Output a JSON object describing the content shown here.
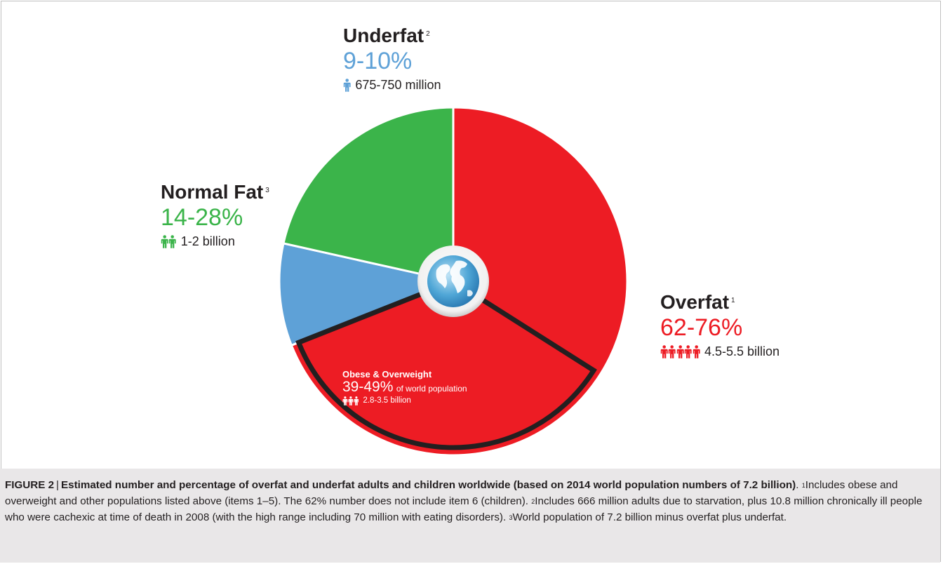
{
  "chart_data": {
    "type": "pie",
    "categories": [
      "Overfat",
      "Underfat",
      "Normal Fat"
    ],
    "values": [
      69,
      9.5,
      21.5
    ],
    "colors": [
      "#ed1c24",
      "#5ea1d7",
      "#3bb44a"
    ],
    "segments": [
      {
        "name": "Overfat",
        "footnote": "1",
        "range": "62-76%",
        "count": "4.5-5.5 billion",
        "color": "#ed1c24",
        "icon": "person-icon",
        "icon_count": 5
      },
      {
        "name": "Underfat",
        "footnote": "2",
        "range": "9-10%",
        "count": "675-750 million",
        "color": "#5ea1d7",
        "icon": "person-icon",
        "icon_count": 1
      },
      {
        "name": "Normal Fat",
        "footnote": "3",
        "range": "14-28%",
        "count": "1-2 billion",
        "color": "#3bb44a",
        "icon": "person-icon",
        "icon_count": 2
      }
    ],
    "subsegment": {
      "parent": "Overfat",
      "name": "Obese & Overweight",
      "range": "39-49%",
      "range_suffix": "of world population",
      "count": "2.8-3.5 billion",
      "value": 35,
      "outline_color": "#231f20",
      "icon_count": 3
    },
    "center_icon": "globe-icon"
  },
  "caption": {
    "label": "FIGURE 2",
    "separator": "|",
    "title": "Estimated number and percentage of overfat and underfat adults and children worldwide (based on 2014 world population numbers of 7.2 billion)",
    "title_end": ".",
    "notes": [
      {
        "num": "1",
        "text": "Includes obese and overweight and other populations listed above (items 1–5). The 62% number does not include item 6 (children)."
      },
      {
        "num": "2",
        "text": "Includes 666 million adults due to starvation, plus 10.8 million chronically ill people who were cachexic at time of death in 2008 (with the high range including 70 million with eating disorders)."
      },
      {
        "num": "3",
        "text": "World population of 7.2 billion minus overfat plus underfat."
      }
    ]
  }
}
